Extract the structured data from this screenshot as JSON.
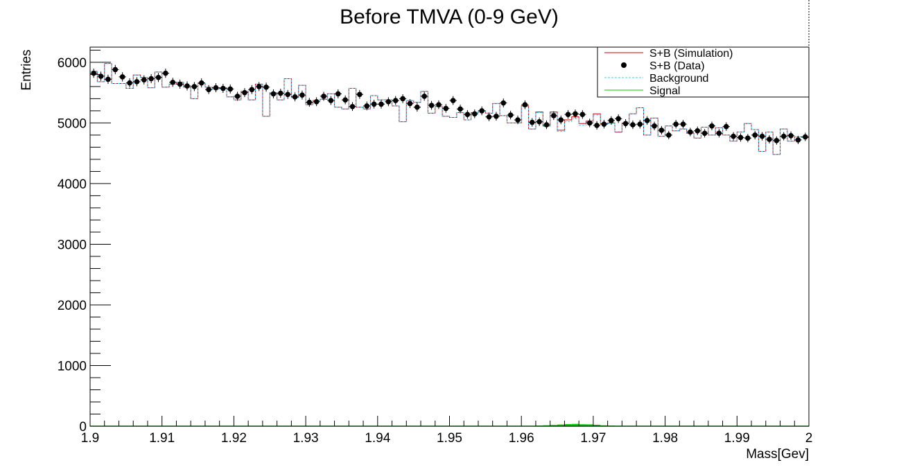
{
  "chart_data": {
    "type": "histogram",
    "title": "Before TMVA (0-9 GeV)",
    "xlabel": "Mass[Gev]",
    "ylabel": "Entries",
    "xlim": [
      1.9,
      2.0
    ],
    "ylim": [
      0,
      6250
    ],
    "x_ticks": [
      "1.9",
      "1.91",
      "1.92",
      "1.93",
      "1.94",
      "1.95",
      "1.96",
      "1.97",
      "1.98",
      "1.99",
      "2"
    ],
    "y_ticks": [
      "0",
      "1000",
      "2000",
      "3000",
      "4000",
      "5000",
      "6000"
    ],
    "grid": false,
    "legend_position": "top-right",
    "bins": 100,
    "series": [
      {
        "name": "S+B (Simulation)",
        "style": "step",
        "color": "#cc0000",
        "values": [
          5850,
          5680,
          5980,
          5650,
          5650,
          5570,
          5790,
          5750,
          5580,
          5840,
          5590,
          5640,
          5670,
          5590,
          5400,
          5650,
          5590,
          5560,
          5580,
          5430,
          5380,
          5520,
          5380,
          5640,
          5110,
          5500,
          5380,
          5730,
          5420,
          5620,
          5300,
          5370,
          5390,
          5480,
          5260,
          5230,
          5570,
          5260,
          5230,
          5450,
          5380,
          5380,
          5280,
          5020,
          5370,
          5340,
          5520,
          5160,
          5270,
          5110,
          5090,
          5170,
          5050,
          5170,
          5200,
          5160,
          5320,
          5120,
          5000,
          5000,
          5280,
          4900,
          5180,
          4950,
          5180,
          4880,
          5050,
          5100,
          4990,
          5030,
          5150,
          4990,
          5000,
          4850,
          5000,
          5150,
          5250,
          4800,
          5080,
          4780,
          4950,
          4870,
          4900,
          4830,
          4750,
          4930,
          4800,
          4920,
          4800,
          4700,
          4850,
          4990,
          4890,
          4530,
          4850,
          4480,
          4900,
          4700,
          4770,
          4760
        ]
      },
      {
        "name": "S+B (Data)",
        "style": "points",
        "color": "#000000",
        "values": [
          5820,
          5770,
          5720,
          5880,
          5760,
          5660,
          5680,
          5710,
          5730,
          5750,
          5820,
          5670,
          5640,
          5610,
          5600,
          5660,
          5550,
          5580,
          5570,
          5560,
          5440,
          5500,
          5550,
          5600,
          5590,
          5480,
          5490,
          5470,
          5430,
          5460,
          5340,
          5350,
          5440,
          5370,
          5480,
          5380,
          5270,
          5470,
          5280,
          5310,
          5310,
          5350,
          5370,
          5400,
          5320,
          5260,
          5440,
          5290,
          5300,
          5240,
          5370,
          5230,
          5140,
          5150,
          5200,
          5100,
          5110,
          5330,
          5130,
          5050,
          5300,
          5010,
          5020,
          4970,
          5120,
          5050,
          5140,
          5150,
          5140,
          5000,
          4960,
          4980,
          5040,
          5070,
          4990,
          4970,
          4980,
          5040,
          4950,
          4880,
          4800,
          4980,
          4980,
          4850,
          4870,
          4830,
          4950,
          4830,
          4940,
          4780,
          4760,
          4750,
          4800,
          4780,
          4730,
          4710,
          4780,
          4790,
          4720,
          4770
        ]
      },
      {
        "name": "Background",
        "style": "dashed-step",
        "color": "#33ccff",
        "values": [
          5850,
          5680,
          5980,
          5650,
          5650,
          5570,
          5790,
          5750,
          5580,
          5840,
          5590,
          5640,
          5670,
          5590,
          5400,
          5650,
          5590,
          5560,
          5580,
          5430,
          5380,
          5520,
          5380,
          5640,
          5110,
          5500,
          5380,
          5730,
          5420,
          5620,
          5300,
          5370,
          5390,
          5480,
          5260,
          5230,
          5570,
          5260,
          5230,
          5450,
          5380,
          5380,
          5280,
          5020,
          5370,
          5340,
          5520,
          5160,
          5270,
          5110,
          5090,
          5170,
          5050,
          5170,
          5200,
          5160,
          5320,
          5120,
          5000,
          5000,
          5270,
          4900,
          5170,
          4940,
          5160,
          4860,
          5020,
          5070,
          4960,
          5000,
          5130,
          4980,
          4990,
          4845,
          4998,
          5150,
          5250,
          4800,
          5080,
          4780,
          4950,
          4870,
          4900,
          4830,
          4750,
          4930,
          4800,
          4920,
          4800,
          4700,
          4850,
          4990,
          4890,
          4530,
          4850,
          4480,
          4900,
          4700,
          4770,
          4760
        ]
      },
      {
        "name": "Signal",
        "style": "step",
        "color": "#00cc00",
        "values": [
          0,
          0,
          0,
          0,
          0,
          0,
          0,
          0,
          0,
          0,
          0,
          0,
          0,
          0,
          0,
          0,
          0,
          0,
          0,
          0,
          0,
          0,
          0,
          0,
          0,
          0,
          0,
          0,
          0,
          0,
          0,
          0,
          0,
          0,
          0,
          0,
          0,
          0,
          0,
          0,
          0,
          0,
          0,
          0,
          0,
          0,
          0,
          0,
          0,
          0,
          0,
          0,
          0,
          0,
          0,
          0,
          0,
          0,
          0,
          0,
          2,
          5,
          10,
          15,
          20,
          28,
          34,
          38,
          32,
          30,
          24,
          14,
          10,
          6,
          3,
          1,
          0,
          0,
          0,
          0,
          0,
          0,
          0,
          0,
          0,
          0,
          0,
          0,
          0,
          0,
          0,
          0,
          0,
          0,
          0,
          0,
          0,
          0,
          0,
          0
        ]
      }
    ]
  }
}
